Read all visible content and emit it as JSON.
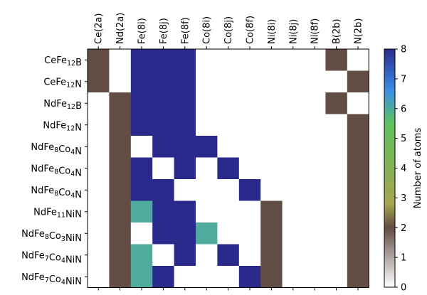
{
  "chart_data": {
    "type": "heatmap",
    "columns": [
      "Ce(2a)",
      "Nd(2a)",
      "Fe(8i)",
      "Fe(8j)",
      "Fe(8f)",
      "Co(8i)",
      "Co(8j)",
      "Co(8f)",
      "Ni(8i)",
      "Ni(8j)",
      "Ni(8f)",
      "B(2b)",
      "N(2b)"
    ],
    "rows": [
      {
        "label_parts": [
          [
            "CeFe",
            false
          ],
          [
            "12",
            true
          ],
          [
            "B",
            false
          ]
        ]
      },
      {
        "label_parts": [
          [
            "CeFe",
            false
          ],
          [
            "12",
            true
          ],
          [
            "N",
            false
          ]
        ]
      },
      {
        "label_parts": [
          [
            "NdFe",
            false
          ],
          [
            "12",
            true
          ],
          [
            "B",
            false
          ]
        ]
      },
      {
        "label_parts": [
          [
            "NdFe",
            false
          ],
          [
            "12",
            true
          ],
          [
            "N",
            false
          ]
        ]
      },
      {
        "label_parts": [
          [
            "NdFe",
            false
          ],
          [
            "8",
            true
          ],
          [
            "Co",
            false
          ],
          [
            "4",
            true
          ],
          [
            "N",
            false
          ]
        ]
      },
      {
        "label_parts": [
          [
            "NdFe",
            false
          ],
          [
            "8",
            true
          ],
          [
            "Co",
            false
          ],
          [
            "4",
            true
          ],
          [
            "N",
            false
          ]
        ]
      },
      {
        "label_parts": [
          [
            "NdFe",
            false
          ],
          [
            "8",
            true
          ],
          [
            "Co",
            false
          ],
          [
            "4",
            true
          ],
          [
            "N",
            false
          ]
        ]
      },
      {
        "label_parts": [
          [
            "NdFe",
            false
          ],
          [
            "11",
            true
          ],
          [
            "NiN",
            false
          ]
        ]
      },
      {
        "label_parts": [
          [
            "NdFe",
            false
          ],
          [
            "8",
            true
          ],
          [
            "Co",
            false
          ],
          [
            "3",
            true
          ],
          [
            "NiN",
            false
          ]
        ]
      },
      {
        "label_parts": [
          [
            "NdFe",
            false
          ],
          [
            "7",
            true
          ],
          [
            "Co",
            false
          ],
          [
            "4",
            true
          ],
          [
            "NiN",
            false
          ]
        ]
      },
      {
        "label_parts": [
          [
            "NdFe",
            false
          ],
          [
            "7",
            true
          ],
          [
            "Co",
            false
          ],
          [
            "4",
            true
          ],
          [
            "NiN",
            false
          ]
        ]
      }
    ],
    "values": [
      [
        2,
        0,
        8,
        8,
        8,
        0,
        0,
        0,
        0,
        0,
        0,
        2,
        0
      ],
      [
        2,
        0,
        8,
        8,
        8,
        0,
        0,
        0,
        0,
        0,
        0,
        0,
        2
      ],
      [
        0,
        2,
        8,
        8,
        8,
        0,
        0,
        0,
        0,
        0,
        0,
        2,
        0
      ],
      [
        0,
        2,
        8,
        8,
        8,
        0,
        0,
        0,
        0,
        0,
        0,
        0,
        2
      ],
      [
        0,
        2,
        0,
        8,
        8,
        8,
        0,
        0,
        0,
        0,
        0,
        0,
        2
      ],
      [
        0,
        2,
        8,
        0,
        8,
        0,
        8,
        0,
        0,
        0,
        0,
        0,
        2
      ],
      [
        0,
        2,
        8,
        8,
        0,
        0,
        0,
        8,
        0,
        0,
        0,
        0,
        2
      ],
      [
        0,
        2,
        6,
        8,
        8,
        0,
        0,
        0,
        2,
        0,
        0,
        0,
        2
      ],
      [
        0,
        2,
        0,
        8,
        8,
        6,
        0,
        0,
        2,
        0,
        0,
        0,
        2
      ],
      [
        0,
        2,
        6,
        0,
        8,
        0,
        8,
        0,
        2,
        0,
        0,
        0,
        2
      ],
      [
        0,
        2,
        6,
        8,
        0,
        0,
        0,
        8,
        2,
        0,
        0,
        0,
        2
      ]
    ],
    "colorbar": {
      "label": "Number of atoms",
      "min": 0,
      "max": 8,
      "ticks": [
        0,
        1,
        2,
        3,
        4,
        5,
        6,
        7,
        8
      ],
      "colormap": "terrain_r",
      "stops": [
        {
          "value": 0,
          "color": "#ffffff"
        },
        {
          "value": 2,
          "color": "#624d45"
        },
        {
          "value": 2.8,
          "color": "#a6a44e"
        },
        {
          "value": 5.5,
          "color": "#5ec25f"
        },
        {
          "value": 6.6,
          "color": "#3a8fe8"
        },
        {
          "value": 8,
          "color": "#2a2a8c"
        }
      ]
    }
  }
}
